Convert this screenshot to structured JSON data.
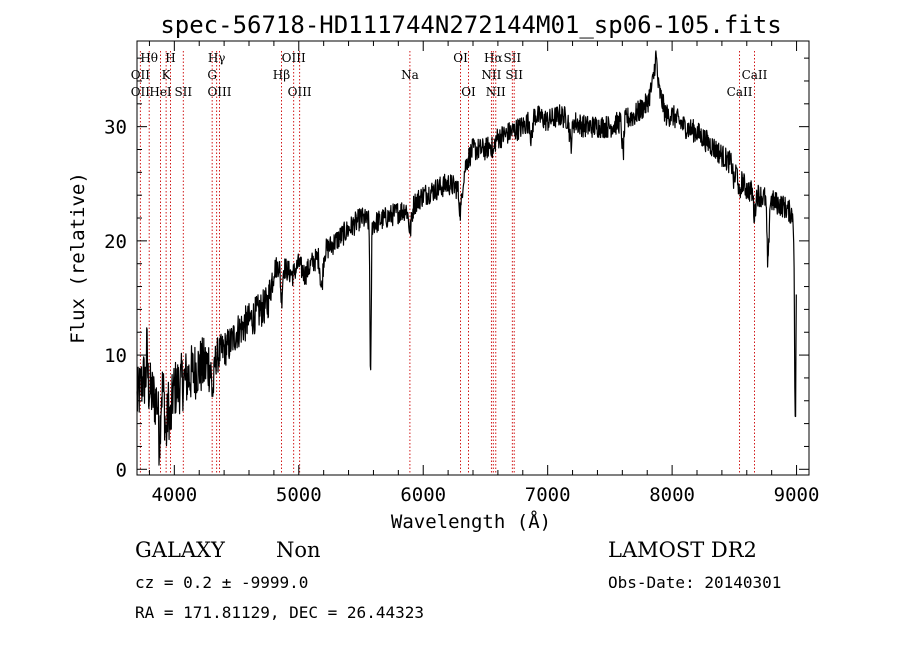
{
  "chart_data": {
    "type": "line",
    "title": "spec-56718-HD111744N272144M01_sp06-105.fits",
    "xlabel": "Wavelength (Å)",
    "ylabel": "Flux (relative)",
    "xlim": [
      3700,
      9100
    ],
    "ylim": [
      -0.5,
      37.5
    ],
    "xticks": [
      4000,
      5000,
      6000,
      7000,
      8000,
      9000
    ],
    "yticks": [
      0,
      10,
      20,
      30
    ],
    "series": [
      {
        "color": "#000000",
        "anchors": [
          [
            3700,
            6
          ],
          [
            3750,
            8
          ],
          [
            3800,
            7
          ],
          [
            3850,
            6
          ],
          [
            3900,
            7
          ],
          [
            3950,
            7
          ],
          [
            4000,
            7
          ],
          [
            4050,
            7.5
          ],
          [
            4100,
            8
          ],
          [
            4150,
            8.5
          ],
          [
            4200,
            9
          ],
          [
            4250,
            9
          ],
          [
            4300,
            9.5
          ],
          [
            4350,
            10
          ],
          [
            4400,
            10.5
          ],
          [
            4450,
            11
          ],
          [
            4500,
            12
          ],
          [
            4550,
            12.5
          ],
          [
            4600,
            13
          ],
          [
            4650,
            13.5
          ],
          [
            4700,
            14
          ],
          [
            4750,
            14.5
          ],
          [
            4800,
            17.5
          ],
          [
            4850,
            18
          ],
          [
            4900,
            17.5
          ],
          [
            4950,
            17
          ],
          [
            5000,
            18
          ],
          [
            5050,
            17
          ],
          [
            5100,
            18
          ],
          [
            5200,
            19
          ],
          [
            5300,
            20
          ],
          [
            5400,
            21
          ],
          [
            5500,
            22
          ],
          [
            5600,
            21.5
          ],
          [
            5700,
            22
          ],
          [
            5800,
            22.5
          ],
          [
            5900,
            23
          ],
          [
            6000,
            24
          ],
          [
            6100,
            24.5
          ],
          [
            6200,
            25
          ],
          [
            6300,
            24.5
          ],
          [
            6350,
            27
          ],
          [
            6400,
            28
          ],
          [
            6500,
            28
          ],
          [
            6600,
            29
          ],
          [
            6700,
            29.5
          ],
          [
            6800,
            30
          ],
          [
            6900,
            31
          ],
          [
            7000,
            30.5
          ],
          [
            7100,
            31
          ],
          [
            7200,
            30.5
          ],
          [
            7300,
            30
          ],
          [
            7400,
            30
          ],
          [
            7500,
            30
          ],
          [
            7600,
            30.5
          ],
          [
            7700,
            31
          ],
          [
            7800,
            32
          ],
          [
            7850,
            34
          ],
          [
            7900,
            33
          ],
          [
            7950,
            31
          ],
          [
            8000,
            31
          ],
          [
            8100,
            30
          ],
          [
            8200,
            29.5
          ],
          [
            8300,
            28.5
          ],
          [
            8400,
            27.5
          ],
          [
            8500,
            26.5
          ],
          [
            8550,
            25.5
          ],
          [
            8600,
            24.5
          ],
          [
            8700,
            24
          ],
          [
            8800,
            23.5
          ],
          [
            8900,
            23
          ],
          [
            9000,
            22
          ]
        ],
        "features": [
          [
            5577,
            -14,
            10
          ],
          [
            6300,
            -2,
            20
          ],
          [
            4861,
            -3,
            15
          ],
          [
            3934,
            -4,
            20
          ],
          [
            3969,
            -3,
            20
          ],
          [
            4308,
            -3,
            20
          ],
          [
            5183,
            -3,
            20
          ],
          [
            5895,
            -2,
            25
          ],
          [
            6563,
            -1,
            15
          ],
          [
            6870,
            -2,
            15
          ],
          [
            7186,
            -2,
            20
          ],
          [
            7605,
            -3,
            15
          ],
          [
            8498,
            -1.5,
            15
          ],
          [
            8542,
            -2,
            15
          ],
          [
            8662,
            -2,
            15
          ],
          [
            8770,
            -6,
            15
          ],
          [
            8990,
            -18,
            12
          ],
          [
            7870,
            2.5,
            20
          ],
          [
            3880,
            -4,
            15
          ],
          [
            3780,
            3,
            10
          ]
        ]
      }
    ],
    "lines": [
      {
        "label": "Hθ",
        "wl": 3798,
        "row": 1
      },
      {
        "label": "OII",
        "wl": 3727,
        "row": 2
      },
      {
        "label": "OII",
        "wl": 3727,
        "row": 3
      },
      {
        "label": "H",
        "wl": 3969,
        "row": 1
      },
      {
        "label": "K",
        "wl": 3934,
        "row": 2
      },
      {
        "label": "HeI",
        "wl": 3889,
        "row": 3
      },
      {
        "label": "SII",
        "wl": 4072,
        "row": 3
      },
      {
        "label": "Hγ",
        "wl": 4340,
        "row": 1
      },
      {
        "label": "G",
        "wl": 4304,
        "row": 2
      },
      {
        "label": "OIII",
        "wl": 4363,
        "row": 3
      },
      {
        "label": "OIII",
        "wl": 4959,
        "row": 1
      },
      {
        "label": "Hβ",
        "wl": 4861,
        "row": 2
      },
      {
        "label": "OIII",
        "wl": 5007,
        "row": 3
      },
      {
        "label": "Na",
        "wl": 5893,
        "row": 2
      },
      {
        "label": "OI",
        "wl": 6300,
        "row": 1
      },
      {
        "label": "OI",
        "wl": 6364,
        "row": 3
      },
      {
        "label": "Hα",
        "wl": 6563,
        "row": 1
      },
      {
        "label": "SII",
        "wl": 6716,
        "row": 1
      },
      {
        "label": "NII",
        "wl": 6548,
        "row": 2
      },
      {
        "label": "SII",
        "wl": 6731,
        "row": 2
      },
      {
        "label": "NII",
        "wl": 6583,
        "row": 3
      },
      {
        "label": "CaII",
        "wl": 8662,
        "row": 2
      },
      {
        "label": "CaII",
        "wl": 8542,
        "row": 3
      }
    ],
    "line_color": "#cc0000"
  },
  "info": {
    "class": "GALAXY",
    "subclass": "Non",
    "survey": "LAMOST DR2",
    "cz": "cz = 0.2 ± -9999.0",
    "obs_date": "Obs-Date: 20140301",
    "coords": "RA = 171.81129, DEC =  26.44323"
  }
}
